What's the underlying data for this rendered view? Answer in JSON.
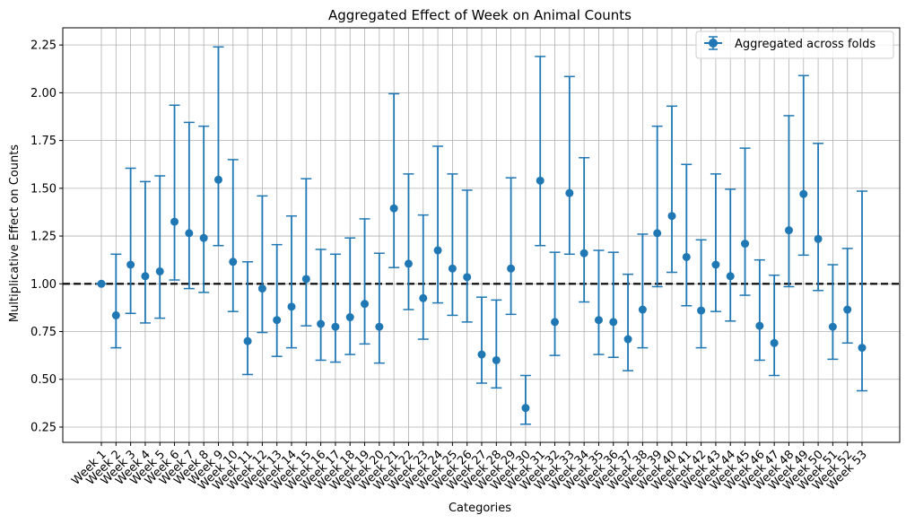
{
  "chart_data": {
    "type": "scatter",
    "title": "Aggregated Effect of Week on Animal Counts",
    "xlabel": "Categories",
    "ylabel": "Multiplicative Effect on Counts",
    "ylim": [
      0.17,
      2.34
    ],
    "yticks": [
      0.25,
      0.5,
      0.75,
      1.0,
      1.25,
      1.5,
      1.75,
      2.0,
      2.25
    ],
    "ytick_labels": [
      "0.25",
      "0.50",
      "0.75",
      "1.00",
      "1.25",
      "1.50",
      "1.75",
      "2.00",
      "2.25"
    ],
    "grid": true,
    "reference_line": 1.0,
    "legend": {
      "position": "top-right",
      "label": "Aggregated across folds"
    },
    "colors": {
      "series": "#1f77b4",
      "reference": "#000000",
      "grid": "#b0b0b0"
    },
    "categories": [
      "Week 1",
      "Week 2",
      "Week 3",
      "Week 4",
      "Week 5",
      "Week 6",
      "Week 7",
      "Week 8",
      "Week 9",
      "Week 10",
      "Week 11",
      "Week 12",
      "Week 13",
      "Week 14",
      "Week 15",
      "Week 16",
      "Week 17",
      "Week 18",
      "Week 19",
      "Week 20",
      "Week 21",
      "Week 22",
      "Week 23",
      "Week 24",
      "Week 25",
      "Week 26",
      "Week 27",
      "Week 28",
      "Week 29",
      "Week 30",
      "Week 31",
      "Week 32",
      "Week 33",
      "Week 34",
      "Week 35",
      "Week 36",
      "Week 37",
      "Week 38",
      "Week 39",
      "Week 40",
      "Week 41",
      "Week 42",
      "Week 43",
      "Week 44",
      "Week 45",
      "Week 46",
      "Week 47",
      "Week 48",
      "Week 49",
      "Week 50",
      "Week 51",
      "Week 52",
      "Week 53"
    ],
    "values": [
      1.0,
      0.835,
      1.1,
      1.04,
      1.065,
      1.325,
      1.265,
      1.24,
      1.545,
      1.115,
      0.7,
      0.975,
      0.81,
      0.88,
      1.025,
      0.79,
      0.775,
      0.825,
      0.895,
      0.775,
      1.395,
      1.105,
      0.925,
      1.175,
      1.08,
      1.035,
      0.63,
      0.6,
      1.08,
      0.35,
      1.54,
      0.8,
      1.475,
      1.16,
      0.81,
      0.8,
      0.71,
      0.865,
      1.265,
      1.355,
      1.14,
      0.86,
      1.1,
      1.04,
      1.21,
      0.78,
      0.69,
      1.28,
      1.47,
      1.235,
      0.775,
      0.865,
      0.665
    ],
    "lower": [
      1.0,
      0.665,
      0.845,
      0.795,
      0.82,
      1.02,
      0.975,
      0.955,
      1.2,
      0.855,
      0.525,
      0.745,
      0.62,
      0.665,
      0.78,
      0.6,
      0.59,
      0.63,
      0.685,
      0.585,
      1.085,
      0.865,
      0.71,
      0.9,
      0.835,
      0.8,
      0.48,
      0.455,
      0.84,
      0.265,
      1.2,
      0.625,
      1.155,
      0.905,
      0.63,
      0.615,
      0.545,
      0.665,
      0.985,
      1.06,
      0.885,
      0.665,
      0.855,
      0.805,
      0.94,
      0.6,
      0.52,
      0.985,
      1.15,
      0.965,
      0.605,
      0.69,
      0.44
    ],
    "upper": [
      1.0,
      1.155,
      1.605,
      1.535,
      1.565,
      1.935,
      1.845,
      1.825,
      2.24,
      1.65,
      1.115,
      1.46,
      1.205,
      1.355,
      1.55,
      1.18,
      1.155,
      1.24,
      1.34,
      1.16,
      1.995,
      1.575,
      1.36,
      1.72,
      1.575,
      1.49,
      0.93,
      0.915,
      1.555,
      0.52,
      2.19,
      1.165,
      2.085,
      1.66,
      1.175,
      1.165,
      1.05,
      1.26,
      1.825,
      1.93,
      1.625,
      1.23,
      1.575,
      1.495,
      1.71,
      1.125,
      1.045,
      1.88,
      2.09,
      1.735,
      1.1,
      1.185,
      1.485
    ]
  }
}
